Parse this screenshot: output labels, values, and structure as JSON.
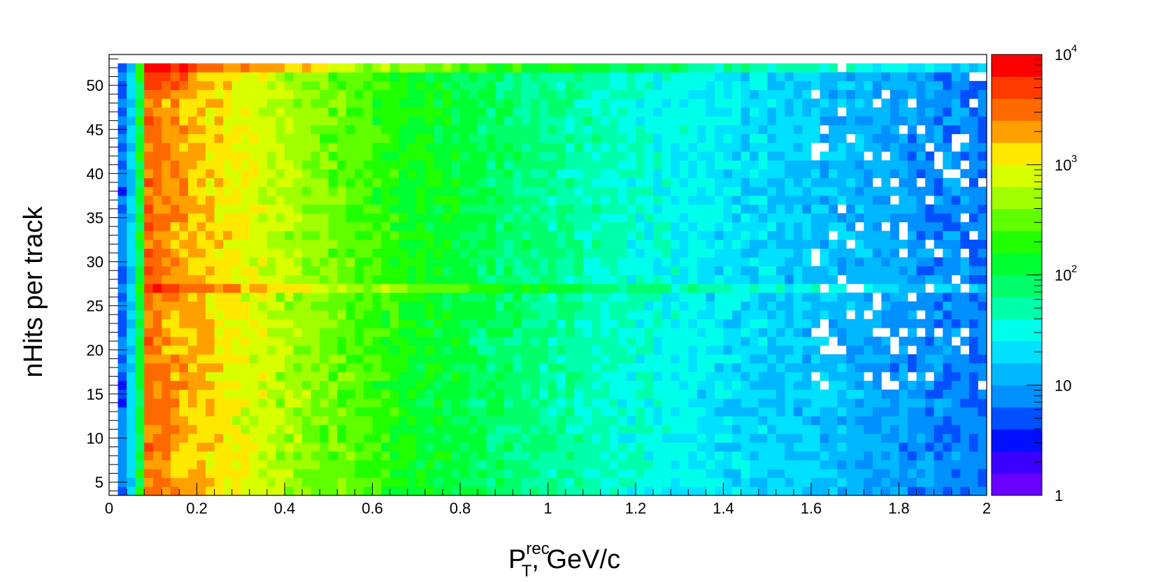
{
  "chart_data": {
    "type": "heatmap",
    "title": "",
    "xlabel": {
      "main": "P",
      "subscript": "T",
      "superscript": "rec",
      "suffix": ", GeV/c"
    },
    "ylabel": "nHits per track",
    "xlim": [
      0,
      2
    ],
    "ylim": [
      3.5,
      53.5
    ],
    "x_ticks": [
      {
        "value": 0,
        "label": "0"
      },
      {
        "value": 0.2,
        "label": "0.2"
      },
      {
        "value": 0.4,
        "label": "0.4"
      },
      {
        "value": 0.6,
        "label": "0.6"
      },
      {
        "value": 0.8,
        "label": "0.8"
      },
      {
        "value": 1,
        "label": "1"
      },
      {
        "value": 1.2,
        "label": "1.2"
      },
      {
        "value": 1.4,
        "label": "1.4"
      },
      {
        "value": 1.6,
        "label": "1.6"
      },
      {
        "value": 1.8,
        "label": "1.8"
      },
      {
        "value": 2,
        "label": "2"
      }
    ],
    "y_ticks": [
      {
        "value": 5,
        "label": "5"
      },
      {
        "value": 10,
        "label": "10"
      },
      {
        "value": 15,
        "label": "15"
      },
      {
        "value": 20,
        "label": "20"
      },
      {
        "value": 25,
        "label": "25"
      },
      {
        "value": 30,
        "label": "30"
      },
      {
        "value": 35,
        "label": "35"
      },
      {
        "value": 40,
        "label": "40"
      },
      {
        "value": 45,
        "label": "45"
      },
      {
        "value": 50,
        "label": "50"
      }
    ],
    "x_bins": 100,
    "y_bins": [
      4,
      52
    ],
    "z_scale": "log",
    "zlim": [
      1,
      10000
    ],
    "z_ticks": [
      {
        "value": 1,
        "label": "1",
        "exp": ""
      },
      {
        "value": 10,
        "label": "10",
        "exp": ""
      },
      {
        "value": 100,
        "label": "10",
        "exp": "2"
      },
      {
        "value": 1000,
        "label": "10",
        "exp": "3"
      },
      {
        "value": 10000,
        "label": "10",
        "exp": "4"
      }
    ],
    "colors": [
      "#6a00ff",
      "#3a00ff",
      "#0010ff",
      "#0050ff",
      "#0090ff",
      "#00b8ff",
      "#00e0ff",
      "#00ffea",
      "#00ffaa",
      "#00ff6a",
      "#00ff30",
      "#20ff00",
      "#60ff00",
      "#a0ff00",
      "#d8ff00",
      "#ffe800",
      "#ffa000",
      "#ff6a00",
      "#ff3a00",
      "#ff0000"
    ],
    "features": {
      "peak_pt": 0.12,
      "peak_count": 8000,
      "band_nhits": 27,
      "top_row_nhits": 52,
      "empty_cells": "sparse white cells at high pT, low counts"
    },
    "grid": false,
    "legend": "colorbar-right"
  }
}
